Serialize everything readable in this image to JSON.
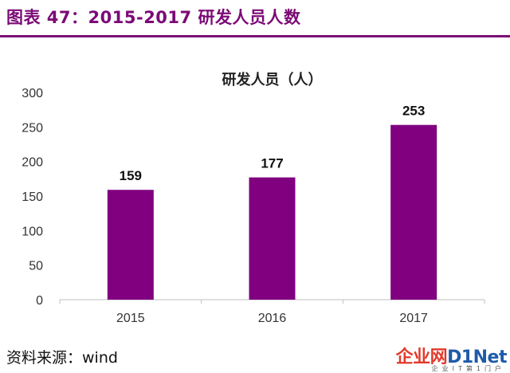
{
  "figure": {
    "title": "图表 47：2015-2017 研发人员人数",
    "source": "资料来源：wind"
  },
  "watermark": {
    "logo_left": "企业网",
    "logo_right": "D1Net",
    "tagline": "企业IT第1门户"
  },
  "colors": {
    "bar": "#800080",
    "title": "#7b0a76"
  },
  "chart_data": {
    "type": "bar",
    "title": "研发人员（人）",
    "categories": [
      "2015",
      "2016",
      "2017"
    ],
    "values": [
      159,
      177,
      253
    ],
    "data_labels": [
      "159",
      "177",
      "253"
    ],
    "ylim": [
      0,
      300
    ],
    "yticks": [
      0,
      50,
      100,
      150,
      200,
      250,
      300
    ],
    "xlabel": "",
    "ylabel": "",
    "grid": false,
    "legend": "none"
  }
}
